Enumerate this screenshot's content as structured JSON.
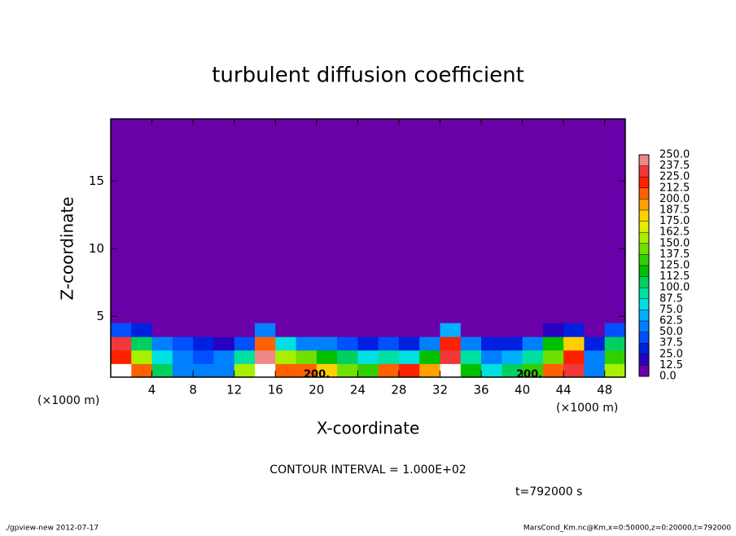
{
  "chart_data": {
    "type": "contour",
    "title": "turbulent diffusion coefficient",
    "xlabel": "X-coordinate",
    "ylabel": "Z-coordinate",
    "xunit": "(×1000 m)",
    "yunit": "(×1000 m)",
    "xlim": [
      0,
      50
    ],
    "ylim": [
      0.5,
      19.6
    ],
    "xticks": [
      4,
      8,
      12,
      16,
      20,
      24,
      28,
      32,
      36,
      40,
      44,
      48
    ],
    "yticks": [
      5,
      10,
      15
    ],
    "x": [
      1,
      3,
      5,
      7,
      9,
      11,
      13,
      15,
      17,
      19,
      21,
      23,
      25,
      27,
      29,
      31,
      33,
      35,
      37,
      39,
      41,
      43,
      45,
      47,
      49
    ],
    "y": [
      1,
      2,
      3,
      4
    ],
    "z": [
      [
        250,
        200,
        100,
        60,
        50,
        60,
        150,
        250,
        210,
        200,
        180,
        140,
        130,
        210,
        215,
        190,
        250,
        120,
        80,
        110,
        130,
        200,
        230,
        60,
        150
      ],
      [
        220,
        150,
        80,
        50,
        45,
        50,
        90,
        240,
        150,
        140,
        120,
        100,
        80,
        90,
        80,
        120,
        230,
        90,
        60,
        70,
        90,
        140,
        220,
        50,
        130
      ],
      [
        230,
        100,
        60,
        40,
        30,
        20,
        40,
        200,
        80,
        60,
        50,
        40,
        30,
        40,
        30,
        50,
        220,
        50,
        30,
        30,
        60,
        120,
        180,
        30,
        100
      ],
      [
        40,
        30,
        10,
        5,
        0,
        0,
        0,
        60,
        10,
        0,
        0,
        0,
        0,
        0,
        0,
        0,
        70,
        10,
        0,
        0,
        0,
        20,
        30,
        0,
        40
      ]
    ],
    "levels": [
      {
        "value": 0,
        "label": "0.0"
      },
      {
        "value": 12.5,
        "label": "12.5"
      },
      {
        "value": 25,
        "label": "25.0"
      },
      {
        "value": 37.5,
        "label": "37.5"
      },
      {
        "value": 50,
        "label": "50.0"
      },
      {
        "value": 62.5,
        "label": "62.5"
      },
      {
        "value": 75,
        "label": "75.0"
      },
      {
        "value": 87.5,
        "label": "87.5"
      },
      {
        "value": 100,
        "label": "100.0"
      },
      {
        "value": 112.5,
        "label": "112.5"
      },
      {
        "value": 125,
        "label": "125.0"
      },
      {
        "value": 137.5,
        "label": "137.5"
      },
      {
        "value": 150,
        "label": "150.0"
      },
      {
        "value": 162.5,
        "label": "162.5"
      },
      {
        "value": 175,
        "label": "175.0"
      },
      {
        "value": 187.5,
        "label": "187.5"
      },
      {
        "value": 200,
        "label": "200.0"
      },
      {
        "value": 212.5,
        "label": "212.5"
      },
      {
        "value": 225,
        "label": "225.0"
      },
      {
        "value": 237.5,
        "label": "237.5"
      },
      {
        "value": 250,
        "label": "250.0"
      }
    ],
    "colors": [
      "#6a00a8",
      "#2800c0",
      "#0020e0",
      "#0050ff",
      "#0080ff",
      "#00b0ff",
      "#00e0e0",
      "#00e0a0",
      "#00d060",
      "#00c000",
      "#30d000",
      "#70e000",
      "#a8f000",
      "#e0f000",
      "#ffd000",
      "#ffa000",
      "#ff6000",
      "#ff2000",
      "#f03838",
      "#f08888"
    ],
    "contour_labels": [
      "200.",
      "200."
    ],
    "contour_interval": "CONTOUR INTERVAL = 1.000E+02",
    "time": "t=792000 s",
    "footer_left": "./gpview-new   2012-07-17",
    "footer_right": "MarsCond_Km.nc@Km,x=0:50000,z=0:20000,t=792000"
  }
}
